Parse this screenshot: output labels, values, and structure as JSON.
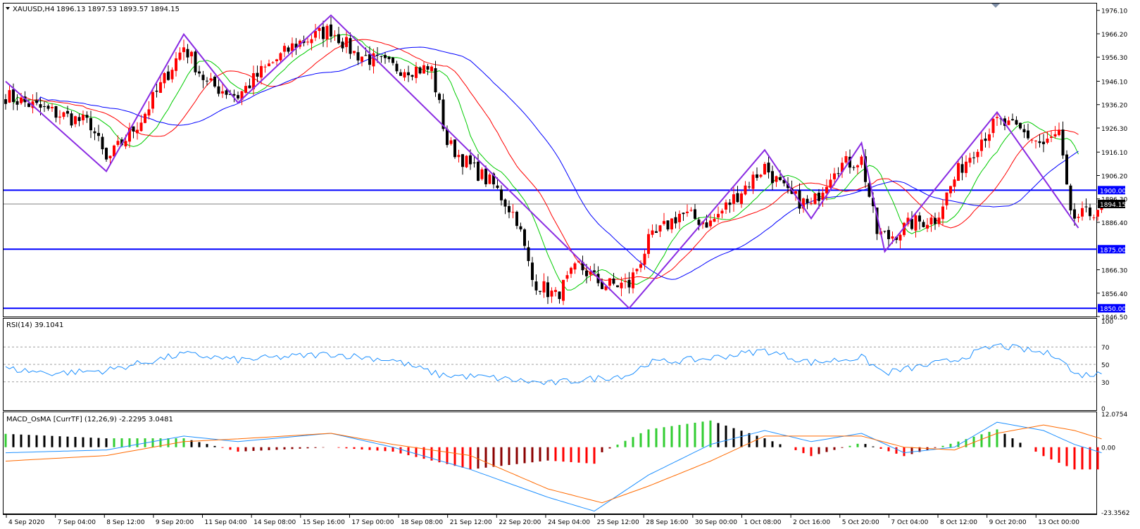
{
  "header": {
    "symbol": "XAUUSD,H4",
    "ohlc": "1896.13 1897.53 1893.57 1894.15"
  },
  "panes": {
    "rsi_label": "RSI(14) 39.1041",
    "macd_label": "MACD_OsMA [CurrTF] (12,26,9) -2.2295 3.0481"
  },
  "axes": {
    "price_ticks": [
      "1976.10",
      "1966.20",
      "1956.30",
      "1946.10",
      "1936.20",
      "1926.30",
      "1916.10",
      "1906.20",
      "1896.30",
      "1886.40",
      "1866.30",
      "1856.40",
      "1846.50"
    ],
    "rsi_ticks": [
      "100",
      "70",
      "50",
      "30",
      "0"
    ],
    "macd_ticks": [
      "12.0754",
      "0.00",
      "-23.3562"
    ],
    "time_ticks": [
      "4 Sep 2020",
      "7 Sep 04:00",
      "8 Sep 12:00",
      "9 Sep 20:00",
      "11 Sep 04:00",
      "14 Sep 08:00",
      "15 Sep 16:00",
      "17 Sep 00:00",
      "18 Sep 08:00",
      "21 Sep 12:00",
      "22 Sep 20:00",
      "24 Sep 04:00",
      "25 Sep 12:00",
      "28 Sep 16:00",
      "30 Sep 00:00",
      "1 Oct 08:00",
      "2 Oct 16:00",
      "5 Oct 20:00",
      "7 Oct 04:00",
      "8 Oct 12:00",
      "9 Oct 20:00",
      "13 Oct 00:00"
    ]
  },
  "levels": [
    {
      "price": 1900.0,
      "label": "1900.00"
    },
    {
      "price": 1875.0,
      "label": "1875.00"
    },
    {
      "price": 1850.0,
      "label": "1850.00"
    }
  ],
  "current_price": {
    "price": 1894.15,
    "label": "1894.15"
  },
  "colors": {
    "bull": "#ff0000",
    "bear": "#000000",
    "level": "#0000ff",
    "zigzag": "#8a2be2",
    "ma_fast": "#00cc00",
    "ma_mid": "#ff0000",
    "ma_slow": "#0000ff",
    "rsi": "#1e90ff",
    "macd_main": "#1e90ff",
    "macd_signal": "#ff6a00",
    "osma_up_rising": "#32cd32",
    "osma_up_falling": "#000000",
    "osma_down_falling": "#ff0000",
    "osma_down_rising": "#8b0000"
  },
  "chart_data": {
    "type": "candlestick",
    "symbol": "XAUUSD",
    "timeframe": "H4",
    "ylim": [
      1846.5,
      1979
    ],
    "zigzag": [
      {
        "bar": 0,
        "price": 1946
      },
      {
        "bar": 26,
        "price": 1908
      },
      {
        "bar": 46,
        "price": 1966
      },
      {
        "bar": 60,
        "price": 1937
      },
      {
        "bar": 84,
        "price": 1974
      },
      {
        "bar": 161,
        "price": 1850
      },
      {
        "bar": 196,
        "price": 1917
      },
      {
        "bar": 208,
        "price": 1888
      },
      {
        "bar": 221,
        "price": 1920
      },
      {
        "bar": 227,
        "price": 1874
      },
      {
        "bar": 256,
        "price": 1933
      },
      {
        "bar": 277,
        "price": 1884
      }
    ],
    "key_points": [
      {
        "bar": 0,
        "price": 1940
      },
      {
        "bar": 10,
        "price": 1934
      },
      {
        "bar": 22,
        "price": 1928
      },
      {
        "bar": 26,
        "price": 1912
      },
      {
        "bar": 35,
        "price": 1930
      },
      {
        "bar": 46,
        "price": 1961
      },
      {
        "bar": 52,
        "price": 1945
      },
      {
        "bar": 60,
        "price": 1940
      },
      {
        "bar": 66,
        "price": 1950
      },
      {
        "bar": 75,
        "price": 1962
      },
      {
        "bar": 84,
        "price": 1968
      },
      {
        "bar": 90,
        "price": 1958
      },
      {
        "bar": 100,
        "price": 1952
      },
      {
        "bar": 110,
        "price": 1951
      },
      {
        "bar": 114,
        "price": 1920
      },
      {
        "bar": 120,
        "price": 1910
      },
      {
        "bar": 126,
        "price": 1902
      },
      {
        "bar": 132,
        "price": 1888
      },
      {
        "bar": 136,
        "price": 1862
      },
      {
        "bar": 142,
        "price": 1855
      },
      {
        "bar": 148,
        "price": 1868
      },
      {
        "bar": 154,
        "price": 1860
      },
      {
        "bar": 161,
        "price": 1860
      },
      {
        "bar": 166,
        "price": 1878
      },
      {
        "bar": 174,
        "price": 1890
      },
      {
        "bar": 182,
        "price": 1886
      },
      {
        "bar": 190,
        "price": 1900
      },
      {
        "bar": 196,
        "price": 1910
      },
      {
        "bar": 202,
        "price": 1898
      },
      {
        "bar": 208,
        "price": 1893
      },
      {
        "bar": 214,
        "price": 1910
      },
      {
        "bar": 221,
        "price": 1913
      },
      {
        "bar": 225,
        "price": 1882
      },
      {
        "bar": 228,
        "price": 1880
      },
      {
        "bar": 234,
        "price": 1886
      },
      {
        "bar": 240,
        "price": 1888
      },
      {
        "bar": 246,
        "price": 1908
      },
      {
        "bar": 252,
        "price": 1922
      },
      {
        "bar": 256,
        "price": 1929
      },
      {
        "bar": 262,
        "price": 1925
      },
      {
        "bar": 268,
        "price": 1919
      },
      {
        "bar": 272,
        "price": 1924
      },
      {
        "bar": 275,
        "price": 1888
      },
      {
        "bar": 280,
        "price": 1890
      },
      {
        "bar": 283,
        "price": 1894.15
      }
    ],
    "rsi": {
      "period": 14,
      "last": 39.1041,
      "ylim": [
        0,
        100
      ],
      "levels": [
        30,
        50,
        70
      ],
      "key_points": [
        {
          "bar": 0,
          "v": 45
        },
        {
          "bar": 12,
          "v": 40
        },
        {
          "bar": 26,
          "v": 43
        },
        {
          "bar": 46,
          "v": 62
        },
        {
          "bar": 60,
          "v": 55
        },
        {
          "bar": 84,
          "v": 62
        },
        {
          "bar": 100,
          "v": 55
        },
        {
          "bar": 112,
          "v": 38
        },
        {
          "bar": 125,
          "v": 35
        },
        {
          "bar": 140,
          "v": 28
        },
        {
          "bar": 161,
          "v": 38
        },
        {
          "bar": 166,
          "v": 52
        },
        {
          "bar": 180,
          "v": 56
        },
        {
          "bar": 196,
          "v": 66
        },
        {
          "bar": 208,
          "v": 52
        },
        {
          "bar": 221,
          "v": 58
        },
        {
          "bar": 227,
          "v": 40
        },
        {
          "bar": 245,
          "v": 55
        },
        {
          "bar": 256,
          "v": 72
        },
        {
          "bar": 272,
          "v": 60
        },
        {
          "bar": 276,
          "v": 38
        },
        {
          "bar": 283,
          "v": 39.1
        }
      ]
    },
    "macd": {
      "params": [
        12,
        26,
        9
      ],
      "osma_last": -2.2295,
      "signal_last": 3.0481,
      "ylim": [
        -23.3562,
        12.0754
      ],
      "main_points": [
        {
          "bar": 0,
          "v": -2
        },
        {
          "bar": 26,
          "v": -1
        },
        {
          "bar": 46,
          "v": 4
        },
        {
          "bar": 60,
          "v": 2
        },
        {
          "bar": 84,
          "v": 5
        },
        {
          "bar": 100,
          "v": 0
        },
        {
          "bar": 120,
          "v": -8
        },
        {
          "bar": 140,
          "v": -18
        },
        {
          "bar": 152,
          "v": -23
        },
        {
          "bar": 166,
          "v": -10
        },
        {
          "bar": 182,
          "v": 1
        },
        {
          "bar": 196,
          "v": 6
        },
        {
          "bar": 208,
          "v": 2
        },
        {
          "bar": 221,
          "v": 5
        },
        {
          "bar": 232,
          "v": -2
        },
        {
          "bar": 245,
          "v": 0
        },
        {
          "bar": 256,
          "v": 9
        },
        {
          "bar": 268,
          "v": 6
        },
        {
          "bar": 276,
          "v": 1
        },
        {
          "bar": 283,
          "v": -2
        }
      ],
      "signal_points": [
        {
          "bar": 0,
          "v": -5
        },
        {
          "bar": 26,
          "v": -3
        },
        {
          "bar": 46,
          "v": 2
        },
        {
          "bar": 60,
          "v": 3
        },
        {
          "bar": 84,
          "v": 5
        },
        {
          "bar": 100,
          "v": 1
        },
        {
          "bar": 120,
          "v": -3
        },
        {
          "bar": 140,
          "v": -15
        },
        {
          "bar": 154,
          "v": -20
        },
        {
          "bar": 166,
          "v": -14
        },
        {
          "bar": 182,
          "v": -5
        },
        {
          "bar": 196,
          "v": 4
        },
        {
          "bar": 208,
          "v": 4
        },
        {
          "bar": 221,
          "v": 4
        },
        {
          "bar": 232,
          "v": 0
        },
        {
          "bar": 245,
          "v": -1
        },
        {
          "bar": 256,
          "v": 5
        },
        {
          "bar": 268,
          "v": 8
        },
        {
          "bar": 276,
          "v": 6
        },
        {
          "bar": 283,
          "v": 3
        }
      ]
    }
  }
}
